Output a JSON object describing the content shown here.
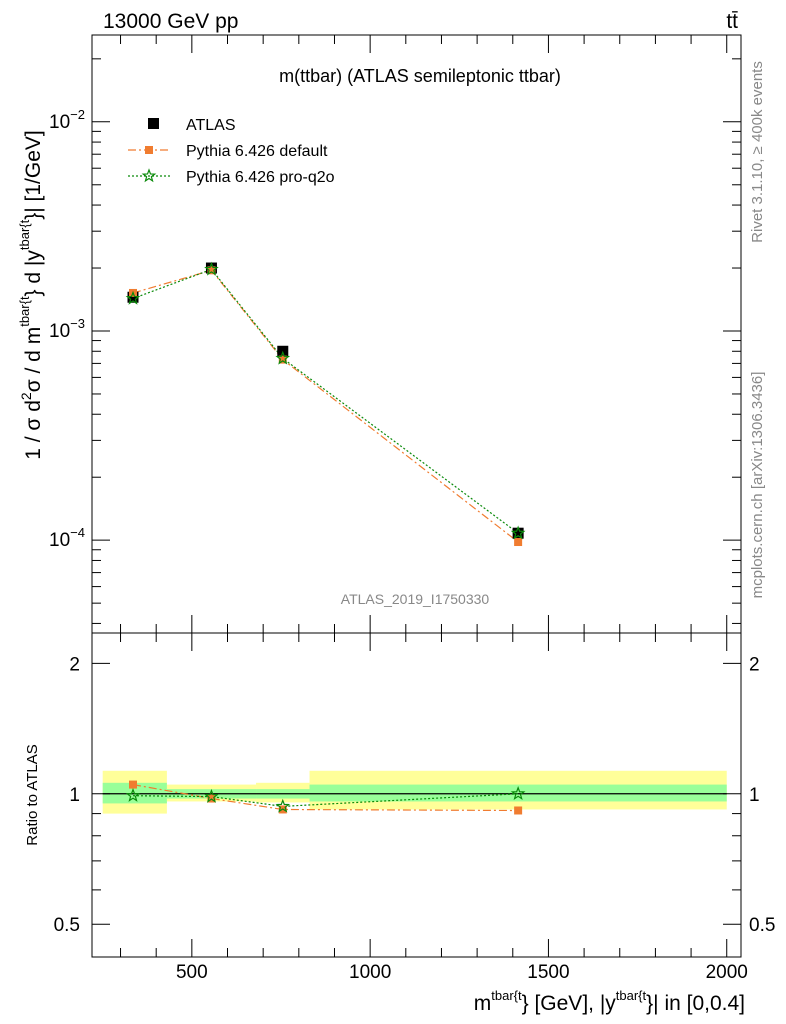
{
  "header": {
    "energy": "13000 GeV pp",
    "process": "tt̄"
  },
  "side": {
    "rivet": "Rivet 3.1.10, ≥ 400k events",
    "mcplots": "mcplots.cern.ch [arXiv:1306.3436]"
  },
  "chart_data": {
    "type": "line",
    "title": "m(ttbar) (ATLAS semileptonic ttbar)",
    "analysis_id": "ATLAS_2019_I1750330",
    "x": [
      335,
      555,
      755,
      1415
    ],
    "bin_edges": [
      250,
      430,
      680,
      830,
      2000
    ],
    "xlim": [
      220,
      2040
    ],
    "xticks": [
      500,
      1000,
      1500,
      2000
    ],
    "xlabel": {
      "main": "m",
      "sup1": "tbar{t",
      "mid": "} [GeV], |y",
      "sup2": "tbar{t",
      "end": "}| in [0,0.4]"
    },
    "ylabel": {
      "a": "1 / σ d",
      "b": "2",
      "c": "σ / d m",
      "d": "tbar{t",
      "e": "} d |y",
      "f": "tbar{t",
      "g": "}| [1/GeV]"
    },
    "ylim_log": [
      3.6e-05,
      0.026
    ],
    "yticks_main": [
      {
        "base": "10",
        "exp": "−2",
        "v": 0.01
      },
      {
        "base": "10",
        "exp": "−3",
        "v": 0.001
      },
      {
        "base": "10",
        "exp": "−4",
        "v": 0.0001
      }
    ],
    "series": [
      {
        "name": "ATLAS",
        "values": [
          0.00145,
          0.002,
          0.0008,
          0.000108
        ],
        "color": "#000000",
        "marker": "square"
      },
      {
        "name": "Pythia 6.426 default",
        "values": [
          0.00152,
          0.00195,
          0.00073,
          9.8e-05
        ],
        "color": "#f07c30",
        "marker": "square",
        "dash": "dashdot"
      },
      {
        "name": "Pythia 6.426 pro-q2o",
        "values": [
          0.00143,
          0.00197,
          0.00074,
          0.000108
        ],
        "color": "#0a8a0a",
        "marker": "star",
        "dash": "dotted"
      }
    ],
    "ratio": {
      "ylabel": "Ratio to ATLAS",
      "ylim_log": [
        0.42,
        2.35
      ],
      "yticks": [
        "0.5",
        "1",
        "2"
      ],
      "ytick_values": [
        0.5,
        1,
        2
      ],
      "band_green": [
        [
          0.95,
          1.06
        ],
        [
          0.975,
          1.025
        ],
        [
          0.975,
          1.025
        ],
        [
          0.96,
          1.05
        ]
      ],
      "band_yellow": [
        [
          0.9,
          1.13
        ],
        [
          0.96,
          1.05
        ],
        [
          0.955,
          1.06
        ],
        [
          0.92,
          1.13
        ]
      ],
      "series": [
        {
          "name": "Pythia 6.426 default",
          "values": [
            1.05,
            0.975,
            0.92,
            0.915
          ]
        },
        {
          "name": "Pythia 6.426 pro-q2o",
          "values": [
            0.99,
            0.985,
            0.935,
            1.0
          ]
        }
      ]
    }
  }
}
